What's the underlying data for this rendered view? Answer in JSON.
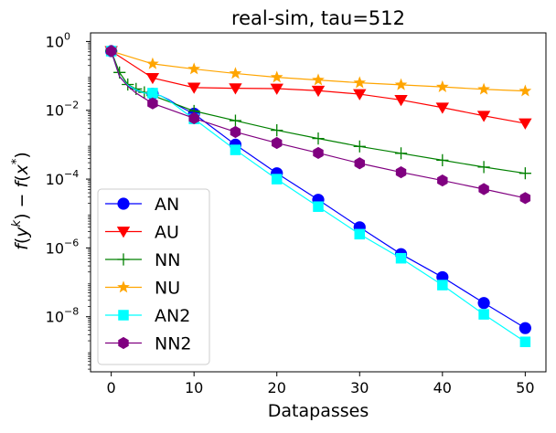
{
  "chart_data": {
    "type": "line",
    "title": "real-sim, tau=512",
    "xlabel": "Datapasses",
    "ylabel": "f(y^k) − f(x*)",
    "yscale": "log",
    "xlim": [
      -2.5,
      52.5
    ],
    "ylim_exp": [
      -9.6,
      0.25
    ],
    "xticks": [
      0,
      10,
      20,
      30,
      40,
      50
    ],
    "xtick_labels": [
      "0",
      "10",
      "20",
      "30",
      "40",
      "50"
    ],
    "yticks_exp": [
      0,
      -2,
      -4,
      -6,
      -8
    ],
    "ytick_labels": [
      {
        "base": "10",
        "exp": "0"
      },
      {
        "base": "10",
        "exp": "−2"
      },
      {
        "base": "10",
        "exp": "−4"
      },
      {
        "base": "10",
        "exp": "−6"
      },
      {
        "base": "10",
        "exp": "−8"
      }
    ],
    "legend_position": "lower-left",
    "series": [
      {
        "name": "AN",
        "color": "#0000ff",
        "marker": "circle",
        "x": [
          0,
          1,
          2,
          3,
          4,
          5,
          6,
          7,
          8,
          9,
          10,
          15,
          20,
          25,
          30,
          35,
          40,
          45,
          50
        ],
        "log10_y": [
          -0.28,
          -1.02,
          -1.28,
          -1.42,
          -1.5,
          -1.52,
          -1.58,
          -1.7,
          -1.85,
          -1.98,
          -2.1,
          -3.0,
          -3.83,
          -4.6,
          -5.4,
          -6.18,
          -6.85,
          -7.6,
          -8.33
        ],
        "marker_x": [
          0,
          5,
          10,
          15,
          20,
          25,
          30,
          35,
          40,
          45,
          50
        ]
      },
      {
        "name": "AU",
        "color": "#ff0000",
        "marker": "triangle-down",
        "x": [
          0,
          5,
          10,
          15,
          20,
          25,
          30,
          35,
          40,
          45,
          50
        ],
        "log10_y": [
          -0.28,
          -1.06,
          -1.34,
          -1.36,
          -1.37,
          -1.43,
          -1.53,
          -1.7,
          -1.92,
          -2.16,
          -2.38
        ],
        "marker_x": [
          0,
          5,
          10,
          15,
          20,
          25,
          30,
          35,
          40,
          45,
          50
        ]
      },
      {
        "name": "NN",
        "color": "#008000",
        "marker": "plus",
        "x": [
          0,
          1,
          2,
          3,
          4,
          5,
          10,
          15,
          20,
          25,
          30,
          35,
          40,
          45,
          50
        ],
        "log10_y": [
          -0.28,
          -0.9,
          -1.25,
          -1.38,
          -1.48,
          -1.57,
          -2.02,
          -2.3,
          -2.58,
          -2.82,
          -3.05,
          -3.25,
          -3.45,
          -3.65,
          -3.83
        ],
        "marker_x": [
          0,
          1,
          2,
          3,
          4,
          5,
          10,
          15,
          20,
          25,
          30,
          35,
          40,
          45,
          50
        ]
      },
      {
        "name": "NU",
        "color": "#ffa500",
        "marker": "star",
        "x": [
          0,
          5,
          10,
          15,
          20,
          25,
          30,
          35,
          40,
          45,
          50
        ],
        "log10_y": [
          -0.28,
          -0.65,
          -0.8,
          -0.93,
          -1.04,
          -1.12,
          -1.2,
          -1.26,
          -1.32,
          -1.39,
          -1.44
        ],
        "marker_x": [
          0,
          5,
          10,
          15,
          20,
          25,
          30,
          35,
          40,
          45,
          50
        ]
      },
      {
        "name": "AN2",
        "color": "#00ffff",
        "marker": "square",
        "x": [
          0,
          1,
          2,
          3,
          4,
          5,
          6,
          7,
          8,
          9,
          10,
          15,
          20,
          25,
          30,
          35,
          40,
          45,
          50
        ],
        "log10_y": [
          -0.28,
          -1.02,
          -1.27,
          -1.4,
          -1.5,
          -1.5,
          -1.58,
          -1.72,
          -1.9,
          -2.08,
          -2.25,
          -3.15,
          -4.0,
          -4.8,
          -5.6,
          -6.3,
          -7.08,
          -7.93,
          -8.73
        ],
        "marker_x": [
          0,
          5,
          10,
          15,
          20,
          25,
          30,
          35,
          40,
          45,
          50
        ]
      },
      {
        "name": "NN2",
        "color": "#800080",
        "marker": "hexagon",
        "x": [
          0,
          1,
          2,
          3,
          4,
          5,
          10,
          15,
          20,
          25,
          30,
          35,
          40,
          45,
          50
        ],
        "log10_y": [
          -0.28,
          -1.02,
          -1.3,
          -1.5,
          -1.65,
          -1.8,
          -2.23,
          -2.63,
          -2.95,
          -3.24,
          -3.54,
          -3.8,
          -4.04,
          -4.29,
          -4.55
        ],
        "marker_x": [
          0,
          5,
          10,
          15,
          20,
          25,
          30,
          35,
          40,
          45,
          50
        ]
      }
    ]
  }
}
